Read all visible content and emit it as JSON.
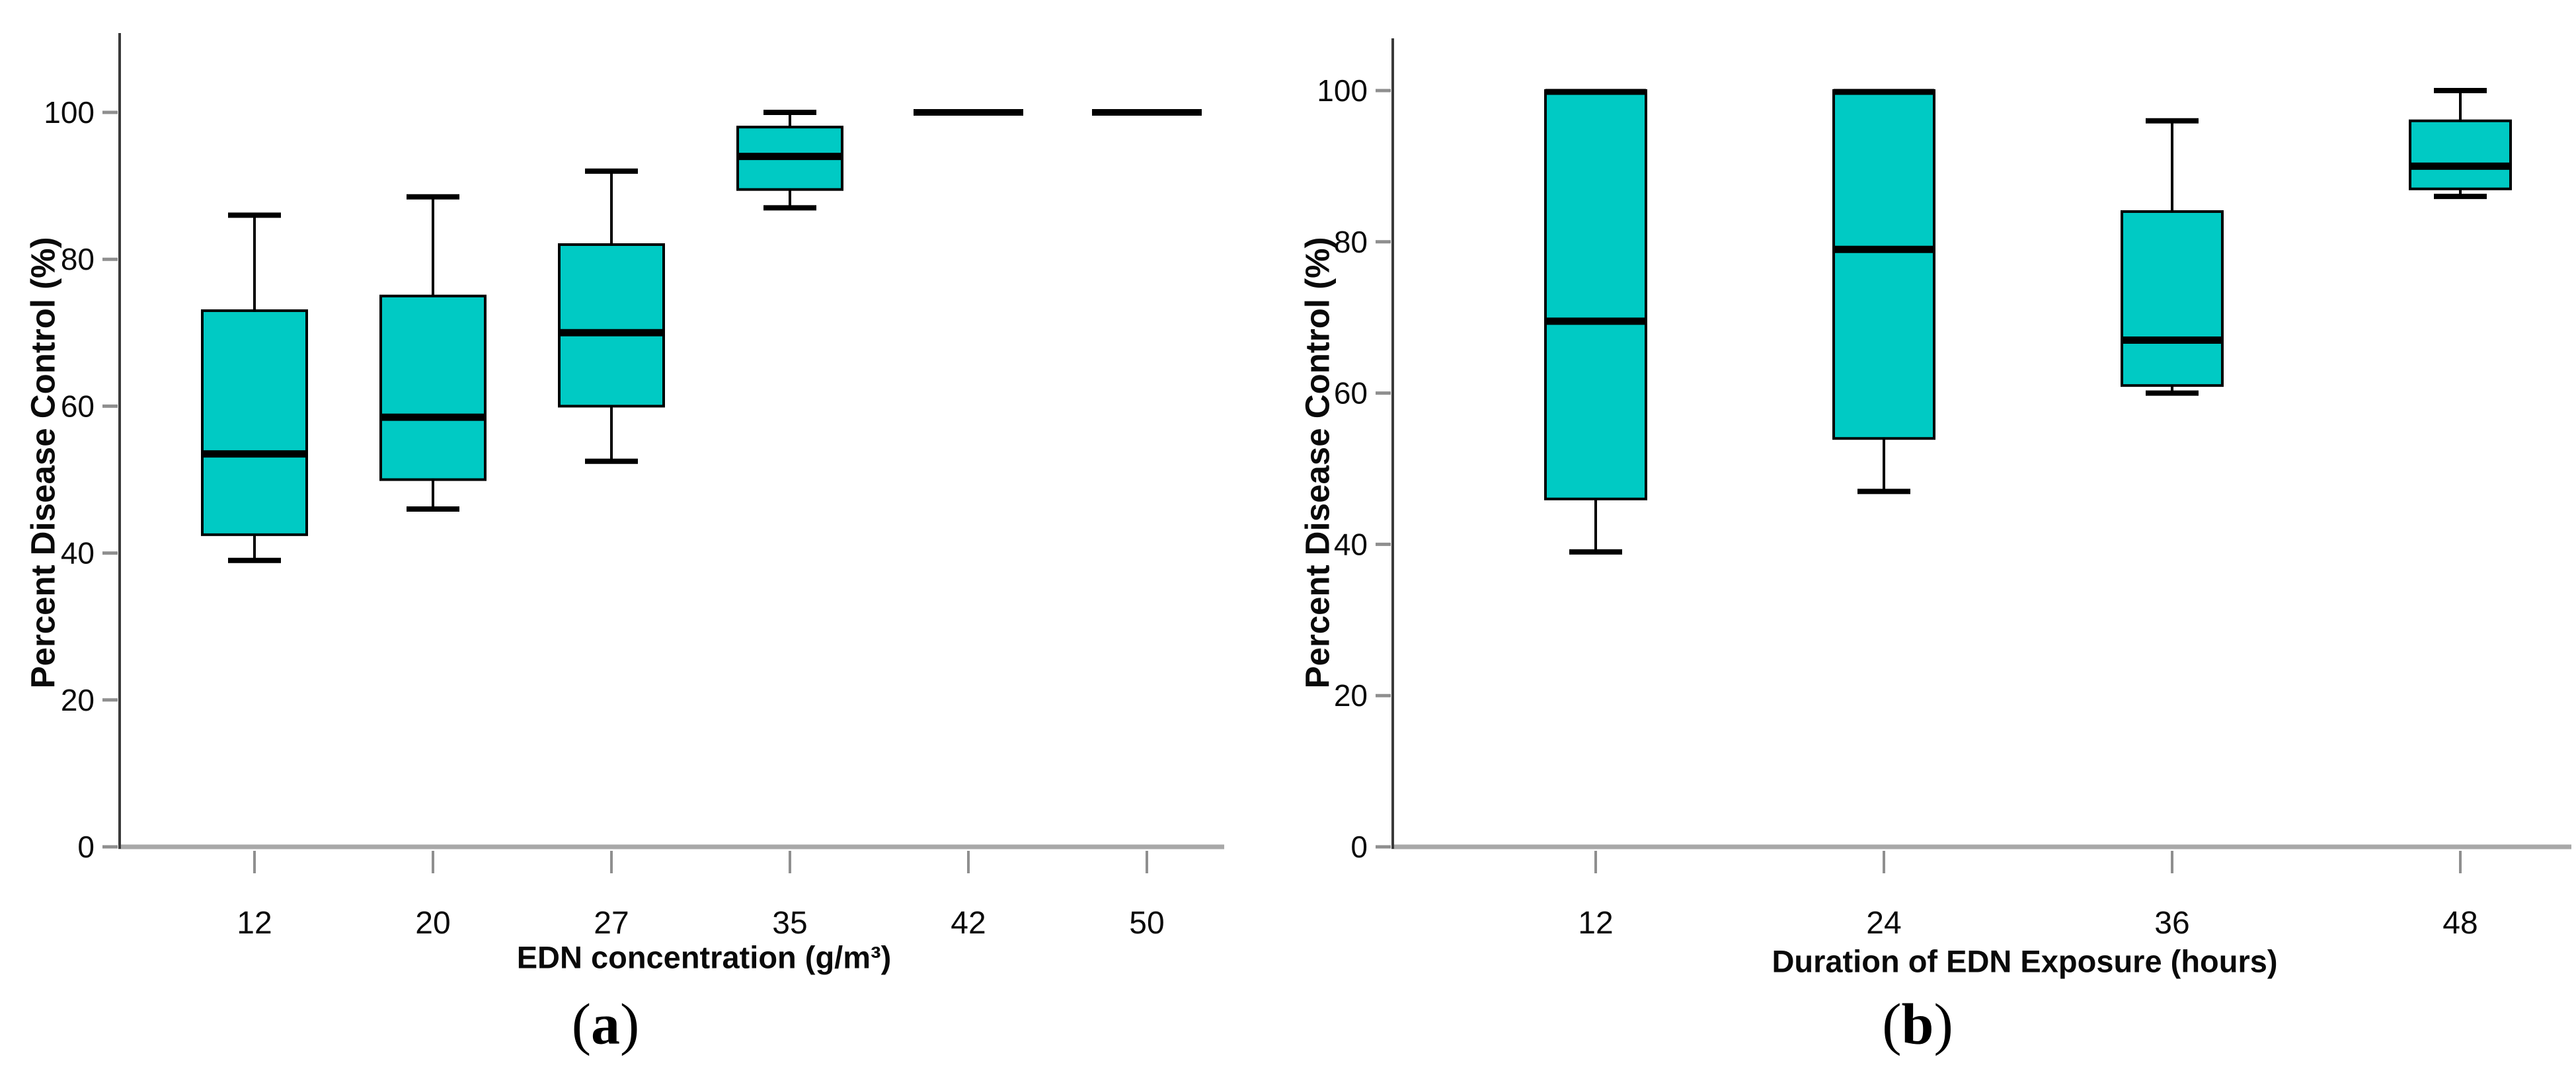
{
  "figure": {
    "background": "#ffffff",
    "panels": {
      "a": {
        "caption_open": "(",
        "caption_letter": "a",
        "caption_close": ")",
        "xlabel": "EDN concentration (g/m³)",
        "ylabel": "Percent Disease Control (%)"
      },
      "b": {
        "caption_open": "(",
        "caption_letter": "b",
        "caption_close": ")",
        "xlabel": "Duration of EDN Exposure (hours)",
        "ylabel": "Percent Disease Control (%)"
      }
    }
  },
  "colors": {
    "box_fill": "#00CAC4",
    "box_stroke": "#000000",
    "median": "#000000",
    "whisker": "#000000",
    "y_axis_line": "#3a3a3a",
    "x_baseline": "#a8a8a8",
    "tick_mark": "#8f8f8f",
    "tick_text": "#0a0a0a"
  },
  "chart_data": [
    {
      "panel": "a",
      "type": "box",
      "title": "",
      "xlabel": "EDN concentration (g/m³)",
      "ylabel": "Percent Disease Control (%)",
      "ylim": [
        0,
        110
      ],
      "yticks": [
        0,
        20,
        40,
        60,
        80,
        100
      ],
      "grid": false,
      "legend": "none",
      "categories": [
        "12",
        "20",
        "27",
        "35",
        "42",
        "50"
      ],
      "boxes": [
        {
          "category": "12",
          "min": 39,
          "q1": 42.5,
          "median": 53.5,
          "q3": 73,
          "max": 86
        },
        {
          "category": "20",
          "min": 46,
          "q1": 50,
          "median": 58.5,
          "q3": 75,
          "max": 88.5
        },
        {
          "category": "27",
          "min": 52.5,
          "q1": 60,
          "median": 70,
          "q3": 82,
          "max": 92
        },
        {
          "category": "35",
          "min": 87,
          "q1": 89.5,
          "median": 94,
          "q3": 98,
          "max": 100
        },
        {
          "category": "42",
          "min": 100,
          "q1": 100,
          "median": 100,
          "q3": 100,
          "max": 100
        },
        {
          "category": "50",
          "min": 100,
          "q1": 100,
          "median": 100,
          "q3": 100,
          "max": 100
        }
      ]
    },
    {
      "panel": "b",
      "type": "box",
      "title": "",
      "xlabel": "Duration of EDN Exposure (hours)",
      "ylabel": "Percent Disease Control (%)",
      "ylim": [
        0,
        110
      ],
      "yticks": [
        0,
        20,
        40,
        60,
        80,
        100
      ],
      "grid": false,
      "legend": "none",
      "categories": [
        "12",
        "24",
        "36",
        "48"
      ],
      "boxes": [
        {
          "category": "12",
          "min": 39,
          "q1": 46,
          "median": 69.5,
          "q3": 100,
          "max": 100
        },
        {
          "category": "24",
          "min": 47,
          "q1": 54,
          "median": 79,
          "q3": 100,
          "max": 100
        },
        {
          "category": "36",
          "min": 60,
          "q1": 61,
          "median": 67,
          "q3": 84,
          "max": 96
        },
        {
          "category": "48",
          "min": 86,
          "q1": 87,
          "median": 90,
          "q3": 96,
          "max": 100
        }
      ]
    }
  ]
}
